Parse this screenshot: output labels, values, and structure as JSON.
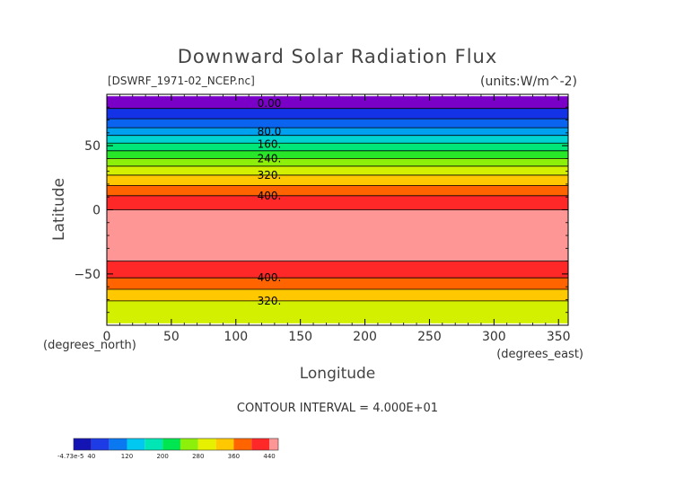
{
  "chart_data": {
    "type": "heatmap",
    "title": "Downward Solar Radiation Flux",
    "source_label": "[DSWRF_1971-02_NCEP.nc]",
    "units_label": "(units:W/m^-2)",
    "xlabel": "Longitude",
    "ylabel": "Latitude",
    "x_unit_label": "(degrees_east)",
    "y_unit_label": "(degrees_north)",
    "xlim": [
      0,
      357.5
    ],
    "ylim": [
      -90,
      90
    ],
    "x_ticks": [
      0,
      50,
      100,
      150,
      200,
      250,
      300,
      350
    ],
    "y_ticks": [
      -50,
      0,
      50
    ],
    "contour_interval_label": "CONTOUR INTERVAL = 4.000E+01",
    "bands": [
      {
        "lat_from": 79,
        "lat_to": 88.5,
        "color": "#7a00c8"
      },
      {
        "lat_from": 71,
        "lat_to": 79,
        "color": "#1432e6"
      },
      {
        "lat_from": 64,
        "lat_to": 71,
        "color": "#0a64f0"
      },
      {
        "lat_from": 58,
        "lat_to": 64,
        "color": "#00a0f0"
      },
      {
        "lat_from": 52,
        "lat_to": 58,
        "color": "#00d2d2"
      },
      {
        "lat_from": 46,
        "lat_to": 52,
        "color": "#00e678"
      },
      {
        "lat_from": 40,
        "lat_to": 46,
        "color": "#28e628"
      },
      {
        "lat_from": 34,
        "lat_to": 40,
        "color": "#8cf00a"
      },
      {
        "lat_from": 27,
        "lat_to": 34,
        "color": "#d2f000"
      },
      {
        "lat_from": 19,
        "lat_to": 27,
        "color": "#ffc800"
      },
      {
        "lat_from": 11,
        "lat_to": 19,
        "color": "#ff6400"
      },
      {
        "lat_from": 0,
        "lat_to": 11,
        "color": "#ff2828"
      },
      {
        "lat_from": -40,
        "lat_to": 0,
        "color": "#ff9696"
      },
      {
        "lat_from": -53,
        "lat_to": -40,
        "color": "#ff2828"
      },
      {
        "lat_from": -62,
        "lat_to": -53,
        "color": "#ff6400"
      },
      {
        "lat_from": -71,
        "lat_to": -62,
        "color": "#ffc800"
      },
      {
        "lat_from": -88.5,
        "lat_to": -71,
        "color": "#d2f000"
      }
    ],
    "contour_lines": [
      79,
      71,
      64,
      58,
      52,
      46,
      40,
      34,
      27,
      19,
      11,
      0,
      -40,
      -53,
      -62,
      -71
    ],
    "contour_labels": [
      {
        "lat": 83,
        "text": "0.00"
      },
      {
        "lat": 61,
        "text": "80.0"
      },
      {
        "lat": 51,
        "text": "160."
      },
      {
        "lat": 40,
        "text": "240."
      },
      {
        "lat": 27,
        "text": "320."
      },
      {
        "lat": 11,
        "text": "400."
      },
      {
        "lat": -53,
        "text": "400."
      },
      {
        "lat": -71,
        "text": "320."
      }
    ],
    "colorbar": {
      "min_label": "-4.73e-5",
      "labels": [
        {
          "value": 40,
          "text": "40"
        },
        {
          "value": 120,
          "text": "120"
        },
        {
          "value": 200,
          "text": "200"
        },
        {
          "value": 280,
          "text": "280"
        },
        {
          "value": 360,
          "text": "360"
        },
        {
          "value": 440,
          "text": "440"
        }
      ],
      "segments": [
        {
          "from": 0,
          "to": 40,
          "color": "#1414b4"
        },
        {
          "from": 40,
          "to": 80,
          "color": "#1e3ce6"
        },
        {
          "from": 80,
          "to": 120,
          "color": "#0a78f0"
        },
        {
          "from": 120,
          "to": 160,
          "color": "#00c8f0"
        },
        {
          "from": 160,
          "to": 200,
          "color": "#00e6b4"
        },
        {
          "from": 200,
          "to": 240,
          "color": "#00e650"
        },
        {
          "from": 240,
          "to": 280,
          "color": "#8cf00a"
        },
        {
          "from": 280,
          "to": 320,
          "color": "#e6f000"
        },
        {
          "from": 320,
          "to": 360,
          "color": "#ffc800"
        },
        {
          "from": 360,
          "to": 400,
          "color": "#ff6400"
        },
        {
          "from": 400,
          "to": 440,
          "color": "#ff2828"
        },
        {
          "from": 440,
          "to": 460,
          "color": "#ff9696"
        }
      ]
    }
  }
}
